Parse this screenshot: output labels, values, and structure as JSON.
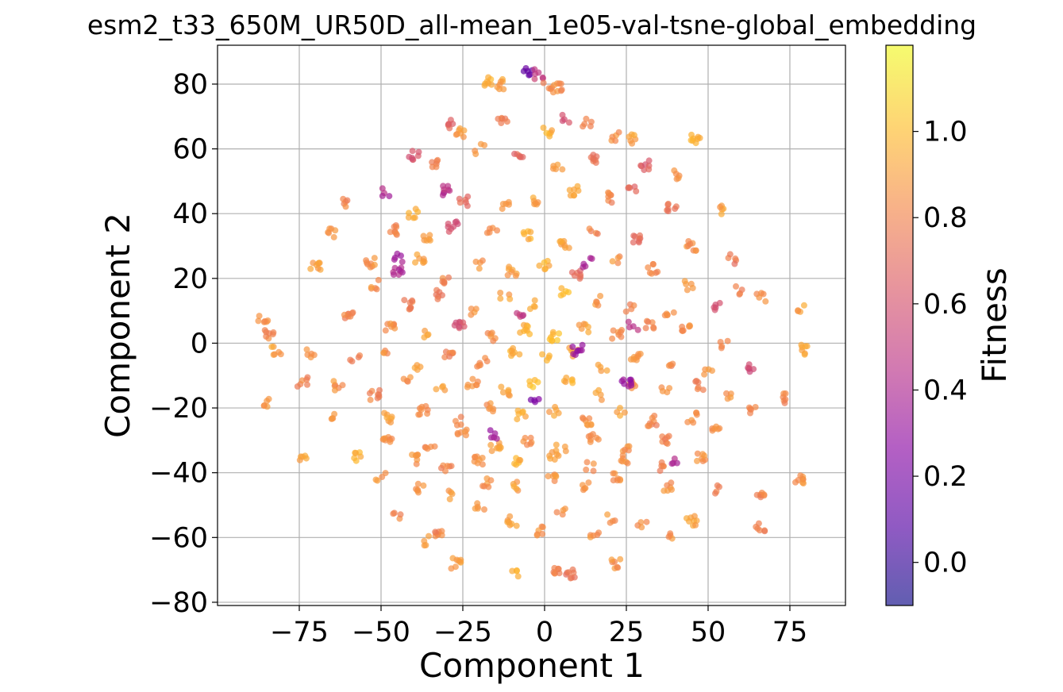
{
  "chart_data": {
    "type": "scatter",
    "title": "esm2_t33_650M_UR50D_all-mean_1e05-val-tsne-global_embedding",
    "xlabel": "Component 1",
    "ylabel": "Component 2",
    "xlim": [
      -100,
      92
    ],
    "ylim": [
      -81,
      92
    ],
    "xticks": [
      -75,
      -50,
      -25,
      0,
      25,
      50,
      75
    ],
    "xtick_labels": [
      "−75",
      "−50",
      "−25",
      "0",
      "25",
      "50",
      "75"
    ],
    "yticks": [
      80,
      60,
      40,
      20,
      0,
      -20,
      -40,
      -60,
      -80
    ],
    "ytick_labels": [
      "80",
      "60",
      "40",
      "20",
      "0",
      "−20",
      "−40",
      "−60",
      "−80"
    ],
    "grid": true,
    "colorbar": {
      "label": "Fitness",
      "colormap": "plasma",
      "range": [
        -0.1,
        1.2
      ],
      "ticks": [
        1.0,
        0.8,
        0.6,
        0.4,
        0.2,
        0.0
      ],
      "tick_labels": [
        "1.0",
        "0.8",
        "0.6",
        "0.4",
        "0.2",
        "0.0"
      ]
    },
    "series": [
      {
        "color_by": "Fitness",
        "points": [
          [
            -5,
            84,
            0.15
          ],
          [
            -2,
            83,
            0.5
          ],
          [
            1,
            79,
            0.8
          ],
          [
            -17,
            81,
            0.95
          ],
          [
            -14,
            80,
            0.9
          ],
          [
            4,
            79,
            0.85
          ],
          [
            -28,
            68,
            0.7
          ],
          [
            -26,
            65,
            0.9
          ],
          [
            -13,
            68,
            0.75
          ],
          [
            1,
            65,
            0.95
          ],
          [
            7,
            69,
            0.6
          ],
          [
            13,
            68,
            0.8
          ],
          [
            22,
            64,
            0.85
          ],
          [
            27,
            63,
            0.9
          ],
          [
            46,
            63,
            0.95
          ],
          [
            -40,
            58,
            0.6
          ],
          [
            -33,
            56,
            0.8
          ],
          [
            -20,
            60,
            0.85
          ],
          [
            -8,
            59,
            0.7
          ],
          [
            4,
            55,
            0.9
          ],
          [
            15,
            57,
            0.75
          ],
          [
            31,
            55,
            0.65
          ],
          [
            40,
            52,
            0.85
          ],
          [
            -60,
            43,
            0.8
          ],
          [
            -48,
            47,
            0.4
          ],
          [
            -40,
            40,
            0.95
          ],
          [
            -25,
            44,
            0.7
          ],
          [
            -12,
            42,
            0.85
          ],
          [
            -2,
            44,
            0.9
          ],
          [
            9,
            47,
            0.95
          ],
          [
            19,
            45,
            0.8
          ],
          [
            27,
            47,
            0.7
          ],
          [
            39,
            42,
            0.75
          ],
          [
            55,
            41,
            0.9
          ],
          [
            -65,
            34,
            0.85
          ],
          [
            -46,
            35,
            0.8
          ],
          [
            -36,
            32,
            0.9
          ],
          [
            -28,
            36,
            0.6
          ],
          [
            -16,
            35,
            0.85
          ],
          [
            -5,
            33,
            0.95
          ],
          [
            6,
            31,
            0.9
          ],
          [
            15,
            34,
            0.8
          ],
          [
            28,
            32,
            0.7
          ],
          [
            45,
            30,
            0.85
          ],
          [
            57,
            26,
            0.75
          ],
          [
            -70,
            24,
            0.9
          ],
          [
            -53,
            25,
            0.85
          ],
          [
            -45,
            22,
            0.4
          ],
          [
            -38,
            26,
            0.9
          ],
          [
            -30,
            20,
            0.8
          ],
          [
            -20,
            24,
            0.85
          ],
          [
            -10,
            22,
            0.9
          ],
          [
            0,
            24,
            0.95
          ],
          [
            10,
            21,
            0.7
          ],
          [
            22,
            26,
            0.85
          ],
          [
            33,
            23,
            0.8
          ],
          [
            44,
            18,
            0.9
          ],
          [
            60,
            16,
            0.8
          ],
          [
            -52,
            18,
            0.85
          ],
          [
            -42,
            12,
            0.8
          ],
          [
            -32,
            15,
            0.75
          ],
          [
            -22,
            10,
            0.85
          ],
          [
            -12,
            14,
            0.9
          ],
          [
            -3,
            12,
            0.95
          ],
          [
            6,
            16,
            1.0
          ],
          [
            16,
            13,
            0.85
          ],
          [
            26,
            11,
            0.8
          ],
          [
            38,
            9,
            0.85
          ],
          [
            52,
            11,
            0.6
          ],
          [
            66,
            14,
            0.85
          ],
          [
            78,
            11,
            0.9
          ],
          [
            -86,
            8,
            0.85
          ],
          [
            -84,
            3,
            0.8
          ],
          [
            -82,
            -2,
            0.9
          ],
          [
            -60,
            8,
            0.8
          ],
          [
            -47,
            5,
            0.85
          ],
          [
            -36,
            3,
            0.9
          ],
          [
            -26,
            6,
            0.6
          ],
          [
            -16,
            2,
            0.85
          ],
          [
            -6,
            4,
            0.95
          ],
          [
            3,
            2,
            1.0
          ],
          [
            12,
            5,
            0.9
          ],
          [
            22,
            3,
            0.85
          ],
          [
            32,
            6,
            0.8
          ],
          [
            43,
            4,
            0.85
          ],
          [
            55,
            0,
            0.8
          ],
          [
            -72,
            -3,
            0.85
          ],
          [
            -58,
            -5,
            0.8
          ],
          [
            -48,
            -3,
            0.85
          ],
          [
            -39,
            -7,
            0.9
          ],
          [
            -29,
            -4,
            0.8
          ],
          [
            -19,
            -6,
            0.85
          ],
          [
            -9,
            -3,
            0.95
          ],
          [
            0,
            -5,
            1.0
          ],
          [
            9,
            -3,
            0.95
          ],
          [
            18,
            -7,
            0.9
          ],
          [
            28,
            -4,
            0.85
          ],
          [
            38,
            -6,
            0.8
          ],
          [
            50,
            -9,
            0.85
          ],
          [
            63,
            -8,
            0.55
          ],
          [
            80,
            -2,
            0.9
          ],
          [
            -63,
            -13,
            0.85
          ],
          [
            -52,
            -16,
            0.8
          ],
          [
            -42,
            -12,
            0.85
          ],
          [
            -32,
            -14,
            0.9
          ],
          [
            -22,
            -12,
            0.85
          ],
          [
            -12,
            -15,
            0.9
          ],
          [
            -3,
            -13,
            1.0
          ],
          [
            7,
            -12,
            0.95
          ],
          [
            17,
            -16,
            0.9
          ],
          [
            27,
            -13,
            0.85
          ],
          [
            37,
            -15,
            0.85
          ],
          [
            47,
            -13,
            0.8
          ],
          [
            57,
            -17,
            0.85
          ],
          [
            73,
            -17,
            0.8
          ],
          [
            -85,
            -18,
            0.85
          ],
          [
            -74,
            -12,
            0.8
          ],
          [
            -65,
            -22,
            0.85
          ],
          [
            -48,
            -23,
            0.9
          ],
          [
            -37,
            -21,
            0.85
          ],
          [
            -27,
            -24,
            0.8
          ],
          [
            -17,
            -20,
            0.85
          ],
          [
            -7,
            -22,
            0.95
          ],
          [
            3,
            -21,
            0.9
          ],
          [
            13,
            -24,
            0.85
          ],
          [
            23,
            -21,
            0.9
          ],
          [
            33,
            -24,
            0.8
          ],
          [
            45,
            -23,
            0.85
          ],
          [
            64,
            -20,
            0.8
          ],
          [
            -48,
            -30,
            0.85
          ],
          [
            -35,
            -31,
            0.8
          ],
          [
            -25,
            -28,
            0.85
          ],
          [
            -15,
            -32,
            0.9
          ],
          [
            -5,
            -30,
            0.85
          ],
          [
            5,
            -32,
            0.9
          ],
          [
            15,
            -29,
            0.85
          ],
          [
            25,
            -33,
            0.85
          ],
          [
            37,
            -30,
            0.8
          ],
          [
            52,
            -27,
            0.85
          ],
          [
            -74,
            -35,
            0.9
          ],
          [
            -57,
            -35,
            0.95
          ],
          [
            -40,
            -36,
            0.85
          ],
          [
            -30,
            -38,
            0.8
          ],
          [
            -20,
            -36,
            0.85
          ],
          [
            -8,
            -37,
            0.95
          ],
          [
            3,
            -35,
            0.9
          ],
          [
            14,
            -38,
            0.85
          ],
          [
            24,
            -36,
            0.85
          ],
          [
            36,
            -38,
            0.8
          ],
          [
            48,
            -35,
            0.85
          ],
          [
            -50,
            -41,
            0.85
          ],
          [
            -38,
            -45,
            0.85
          ],
          [
            -28,
            -47,
            0.9
          ],
          [
            -18,
            -43,
            0.85
          ],
          [
            -8,
            -44,
            0.9
          ],
          [
            2,
            -42,
            0.85
          ],
          [
            12,
            -44,
            0.85
          ],
          [
            22,
            -41,
            0.85
          ],
          [
            38,
            -44,
            0.85
          ],
          [
            52,
            -45,
            0.8
          ],
          [
            66,
            -47,
            0.8
          ],
          [
            78,
            -42,
            0.85
          ],
          [
            -45,
            -53,
            0.8
          ],
          [
            -20,
            -50,
            0.85
          ],
          [
            -10,
            -55,
            0.9
          ],
          [
            5,
            -52,
            0.85
          ],
          [
            20,
            -54,
            0.85
          ],
          [
            30,
            -56,
            0.85
          ],
          [
            45,
            -55,
            0.9
          ],
          [
            66,
            -57,
            0.8
          ],
          [
            -37,
            -61,
            0.85
          ],
          [
            -32,
            -59,
            0.8
          ],
          [
            -2,
            -58,
            0.85
          ],
          [
            15,
            -60,
            0.85
          ],
          [
            38,
            -60,
            0.85
          ],
          [
            -27,
            -68,
            0.9
          ],
          [
            -9,
            -71,
            0.95
          ],
          [
            4,
            -70,
            0.8
          ],
          [
            8,
            -71,
            0.75
          ],
          [
            22,
            -68,
            0.85
          ],
          [
            -3,
            -18,
            0.2
          ],
          [
            25,
            -12,
            0.3
          ],
          [
            13,
            25,
            0.35
          ],
          [
            -30,
            47,
            0.45
          ],
          [
            -16,
            -28,
            0.35
          ],
          [
            10,
            -2,
            0.3
          ],
          [
            40,
            -37,
            0.4
          ],
          [
            -45,
            26,
            0.35
          ],
          [
            27,
            5,
            0.45
          ],
          [
            -8,
            8,
            0.5
          ]
        ]
      }
    ]
  }
}
